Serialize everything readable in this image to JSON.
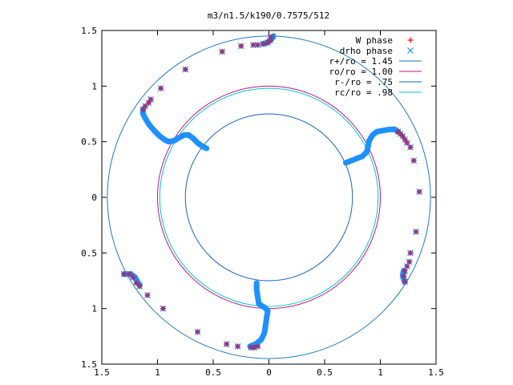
{
  "chart_data": {
    "type": "scatter",
    "title": "m3/n1.5/k190/0.7575/512",
    "xlabel": "",
    "ylabel": "",
    "xlim": [
      -1.5,
      1.5
    ],
    "ylim": [
      -1.5,
      1.5
    ],
    "x_tick_labels": [
      "1.5",
      "1",
      "0.5",
      "0",
      "0.5",
      "1",
      "1.5"
    ],
    "y_tick_labels": [
      "1.5",
      "1",
      "0.5",
      "0",
      "0.5",
      "1",
      "1.5"
    ],
    "tick_values": [
      -1.5,
      -1,
      -0.5,
      0,
      0.5,
      1,
      1.5
    ],
    "grid": false,
    "legend_position": "top-right",
    "series": [
      {
        "name": "W phase",
        "kind": "points",
        "marker": "plus",
        "color": "#ff0000",
        "points": [
          [
            0.02,
            1.44
          ],
          [
            0.01,
            1.41
          ],
          [
            -0.01,
            1.39
          ],
          [
            -0.05,
            1.38
          ],
          [
            -0.1,
            1.37
          ],
          [
            -0.14,
            1.37
          ],
          [
            -0.25,
            1.36
          ],
          [
            -0.42,
            1.31
          ],
          [
            -0.75,
            1.15
          ],
          [
            -0.97,
            0.98
          ],
          [
            -1.06,
            0.88
          ],
          [
            -1.08,
            0.85
          ],
          [
            -1.11,
            0.82
          ],
          [
            -1.13,
            0.79
          ],
          [
            1.16,
            0.59
          ],
          [
            1.18,
            0.57
          ],
          [
            1.2,
            0.55
          ],
          [
            1.22,
            0.52
          ],
          [
            1.24,
            0.49
          ],
          [
            1.27,
            0.45
          ],
          [
            1.3,
            0.33
          ],
          [
            1.35,
            0.05
          ],
          [
            1.32,
            -0.31
          ],
          [
            1.27,
            -0.5
          ],
          [
            1.26,
            -0.58
          ],
          [
            1.24,
            -0.62
          ],
          [
            1.22,
            -0.66
          ],
          [
            1.21,
            -0.71
          ],
          [
            1.22,
            -0.76
          ],
          [
            -0.1,
            -1.34
          ],
          [
            -0.13,
            -1.35
          ],
          [
            -0.16,
            -1.35
          ],
          [
            -0.28,
            -1.34
          ],
          [
            -0.38,
            -1.32
          ],
          [
            -0.64,
            -1.21
          ],
          [
            -0.95,
            -1.0
          ],
          [
            -1.09,
            -0.88
          ],
          [
            -1.16,
            -0.8
          ],
          [
            -1.19,
            -0.77
          ],
          [
            -1.22,
            -0.72
          ],
          [
            -1.25,
            -0.69
          ],
          [
            -1.3,
            -0.69
          ]
        ]
      },
      {
        "name": "drho phase",
        "kind": "points",
        "marker": "cross",
        "color": "#1e90ff",
        "points": [
          [
            0.02,
            1.44
          ],
          [
            0.01,
            1.41
          ],
          [
            -0.01,
            1.39
          ],
          [
            -0.05,
            1.38
          ],
          [
            -0.1,
            1.37
          ],
          [
            -0.14,
            1.37
          ],
          [
            -0.25,
            1.36
          ],
          [
            -0.42,
            1.31
          ],
          [
            -0.75,
            1.15
          ],
          [
            -0.97,
            0.98
          ],
          [
            -1.06,
            0.88
          ],
          [
            -1.08,
            0.85
          ],
          [
            -1.11,
            0.82
          ],
          [
            -1.13,
            0.79
          ],
          [
            1.16,
            0.59
          ],
          [
            1.18,
            0.57
          ],
          [
            1.2,
            0.55
          ],
          [
            1.22,
            0.52
          ],
          [
            1.24,
            0.49
          ],
          [
            1.27,
            0.45
          ],
          [
            1.3,
            0.33
          ],
          [
            1.35,
            0.05
          ],
          [
            1.32,
            -0.31
          ],
          [
            1.27,
            -0.5
          ],
          [
            1.26,
            -0.58
          ],
          [
            1.24,
            -0.62
          ],
          [
            1.22,
            -0.66
          ],
          [
            1.21,
            -0.71
          ],
          [
            1.22,
            -0.76
          ],
          [
            -0.1,
            -1.34
          ],
          [
            -0.13,
            -1.35
          ],
          [
            -0.16,
            -1.35
          ],
          [
            -0.28,
            -1.34
          ],
          [
            -0.38,
            -1.32
          ],
          [
            -0.64,
            -1.21
          ],
          [
            -0.95,
            -1.0
          ],
          [
            -1.09,
            -0.88
          ],
          [
            -1.16,
            -0.8
          ],
          [
            -1.19,
            -0.77
          ],
          [
            -1.22,
            -0.72
          ],
          [
            -1.25,
            -0.69
          ],
          [
            -1.3,
            -0.69
          ]
        ]
      },
      {
        "name": "r+/ro = 1.45",
        "kind": "circle",
        "radius": 1.45,
        "color": "#1e78c8"
      },
      {
        "name": "ro/ro = 1.00",
        "kind": "circle",
        "radius": 1.0,
        "color": "#c0128a"
      },
      {
        "name": "r-/ro = .75",
        "kind": "circle",
        "radius": 0.75,
        "color": "#1464c8"
      },
      {
        "name": "rc/ro = .98",
        "kind": "circle",
        "radius": 0.98,
        "color": "#00c8c8"
      }
    ],
    "phase_curves": {
      "color": "#1e90ff",
      "curves": [
        [
          [
            -1.13,
            0.79
          ],
          [
            -1.13,
            0.75
          ],
          [
            -1.11,
            0.71
          ],
          [
            -1.08,
            0.66
          ],
          [
            -1.03,
            0.6
          ],
          [
            -0.98,
            0.55
          ],
          [
            -0.94,
            0.52
          ],
          [
            -0.9,
            0.5
          ],
          [
            -0.85,
            0.51
          ],
          [
            -0.8,
            0.54
          ],
          [
            -0.76,
            0.56
          ],
          [
            -0.72,
            0.56
          ],
          [
            -0.68,
            0.53
          ],
          [
            -0.64,
            0.49
          ],
          [
            -0.6,
            0.46
          ],
          [
            -0.56,
            0.44
          ]
        ],
        [
          [
            0.04,
            1.45
          ],
          [
            0.03,
            1.43
          ],
          [
            0.01,
            1.41
          ],
          [
            -0.02,
            1.39
          ],
          [
            -0.05,
            1.38
          ]
        ],
        [
          [
            0.69,
            0.31
          ],
          [
            0.74,
            0.33
          ],
          [
            0.79,
            0.35
          ],
          [
            0.84,
            0.37
          ],
          [
            0.88,
            0.41
          ],
          [
            0.89,
            0.46
          ],
          [
            0.9,
            0.51
          ],
          [
            0.93,
            0.56
          ],
          [
            0.97,
            0.59
          ],
          [
            1.02,
            0.6
          ],
          [
            1.08,
            0.61
          ],
          [
            1.13,
            0.61
          ],
          [
            1.16,
            0.59
          ]
        ],
        [
          [
            1.21,
            -0.66
          ],
          [
            1.2,
            -0.7
          ],
          [
            1.21,
            -0.74
          ],
          [
            1.22,
            -0.76
          ]
        ],
        [
          [
            -0.11,
            -0.77
          ],
          [
            -0.11,
            -0.83
          ],
          [
            -0.1,
            -0.9
          ],
          [
            -0.09,
            -0.96
          ],
          [
            -0.04,
            -0.99
          ],
          [
            -0.01,
            -1.02
          ],
          [
            -0.02,
            -1.08
          ],
          [
            -0.03,
            -1.15
          ],
          [
            -0.04,
            -1.22
          ],
          [
            -0.07,
            -1.28
          ],
          [
            -0.12,
            -1.32
          ],
          [
            -0.17,
            -1.34
          ]
        ],
        [
          [
            -1.3,
            -0.69
          ],
          [
            -1.24,
            -0.69
          ],
          [
            -1.2,
            -0.72
          ],
          [
            -1.18,
            -0.76
          ],
          [
            -1.16,
            -0.79
          ]
        ]
      ]
    }
  }
}
